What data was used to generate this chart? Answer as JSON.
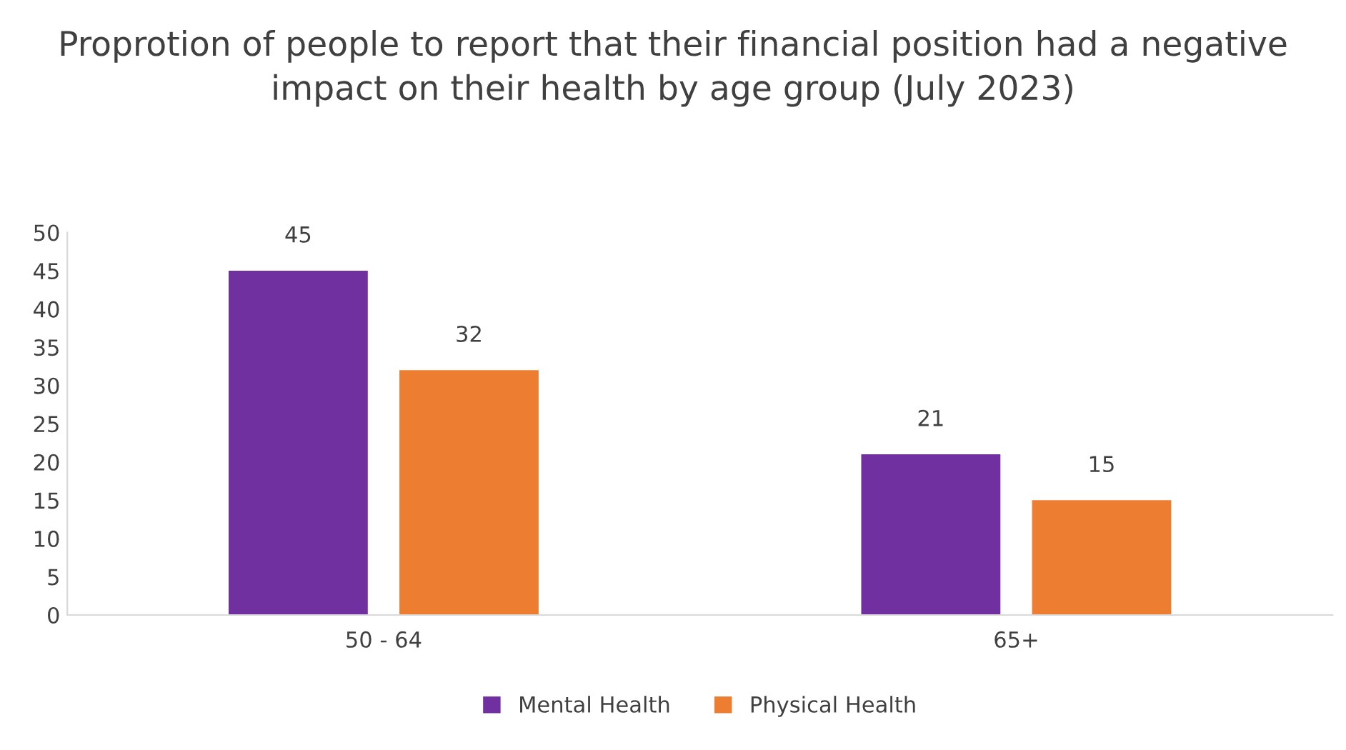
{
  "chart_data": {
    "type": "bar",
    "title": "Proprotion of people to report that their financial position had a negative impact on their health by age group (July 2023)",
    "categories": [
      "50 - 64",
      "65+"
    ],
    "series": [
      {
        "name": "Mental Health",
        "color": "#7030a0",
        "values": [
          45,
          21
        ]
      },
      {
        "name": "Physical Health",
        "color": "#ed7d31",
        "values": [
          32,
          15
        ]
      }
    ],
    "ylim": [
      0,
      50
    ],
    "yticks": [
      0,
      5,
      10,
      15,
      20,
      25,
      30,
      35,
      40,
      45,
      50
    ],
    "data_labels": true,
    "grid": false,
    "legend": "bottom"
  }
}
